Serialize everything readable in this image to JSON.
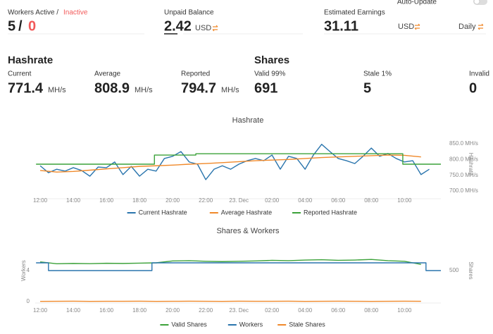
{
  "header": {
    "auto_update": "Auto-Update"
  },
  "workers": {
    "label": "Workers Active /",
    "inactive_label": "Inactive",
    "active": 5,
    "separator": "/",
    "inactive": 0
  },
  "balance": {
    "label": "Unpaid Balance",
    "value": 2.42,
    "currency": "USD"
  },
  "earnings": {
    "label": "Estimated Earnings",
    "value": 31.11,
    "currency": "USD",
    "period": "Daily"
  },
  "hashrate": {
    "title": "Hashrate",
    "current": {
      "label": "Current",
      "value": 771.4,
      "unit": "MH/s"
    },
    "average": {
      "label": "Average",
      "value": 808.9,
      "unit": "MH/s"
    },
    "reported": {
      "label": "Reported",
      "value": 794.7,
      "unit": "MH/s"
    }
  },
  "shares": {
    "title": "Shares",
    "valid": {
      "label": "Valid 99%",
      "value": 691
    },
    "stale": {
      "label": "Stale 1%",
      "value": 5
    },
    "invalid": {
      "label": "Invalid",
      "value": 0
    }
  },
  "chart_data": [
    {
      "type": "line",
      "title": "Hashrate",
      "y2label": "Hashrate",
      "xlim": [
        -0.3,
        24.2
      ],
      "xticks": [
        {
          "value": 0,
          "label": "12:00"
        },
        {
          "value": 2,
          "label": "14:00"
        },
        {
          "value": 4,
          "label": "16:00"
        },
        {
          "value": 6,
          "label": "18:00"
        },
        {
          "value": 8,
          "label": "20:00"
        },
        {
          "value": 10,
          "label": "22:00"
        },
        {
          "value": 12,
          "label": "23. Dec"
        },
        {
          "value": 14,
          "label": "02:00"
        },
        {
          "value": 16,
          "label": "04:00"
        },
        {
          "value": 18,
          "label": "06:00"
        },
        {
          "value": 20,
          "label": "08:00"
        },
        {
          "value": 22,
          "label": "10:00"
        }
      ],
      "y2lim": [
        680,
        890
      ],
      "y2ticks": [
        {
          "value": 850,
          "label": "850.0 MH/s"
        },
        {
          "value": 800,
          "label": "800.0 MH/s"
        },
        {
          "value": 750,
          "label": "750.0 MH/s"
        },
        {
          "value": 700,
          "label": "700.0 MH/s"
        }
      ],
      "grid": false,
      "series": [
        {
          "name": "Current Hashrate",
          "color": "#2a75ad",
          "axis": "y2",
          "x": [
            0,
            0.5,
            1,
            1.5,
            2,
            2.5,
            3,
            3.5,
            4,
            4.5,
            5,
            5.5,
            6,
            6.5,
            7,
            7.5,
            8,
            8.5,
            9,
            9.5,
            10,
            10.5,
            11,
            11.5,
            12,
            12.5,
            13,
            13.5,
            14,
            14.5,
            15,
            15.5,
            16,
            16.5,
            17,
            17.5,
            18,
            18.5,
            19,
            19.5,
            20,
            20.5,
            21,
            21.5,
            22,
            22.5,
            23,
            23.5
          ],
          "values": [
            780,
            758,
            769,
            763,
            774,
            765,
            747,
            776,
            774,
            792,
            752,
            778,
            747,
            769,
            763,
            803,
            810,
            825,
            792,
            785,
            736,
            769,
            780,
            769,
            785,
            796,
            803,
            796,
            814,
            769,
            810,
            803,
            769,
            814,
            848,
            825,
            803,
            796,
            787,
            810,
            836,
            810,
            819,
            803,
            792,
            796,
            752,
            769
          ]
        },
        {
          "name": "Average Hashrate",
          "color": "#f0892a",
          "axis": "y2",
          "x": [
            0,
            1,
            2,
            3,
            4,
            5,
            6,
            7,
            8,
            9,
            10,
            11,
            12,
            13,
            14,
            15,
            16,
            17,
            18,
            19,
            20,
            21,
            22,
            23
          ],
          "values": [
            765,
            760,
            762,
            766,
            770,
            774,
            778,
            780,
            782,
            785,
            787,
            790,
            793,
            796,
            798,
            800,
            803,
            806,
            808,
            810,
            812,
            814,
            813,
            808
          ]
        },
        {
          "name": "Reported Hashrate",
          "color": "#3ca23a",
          "axis": "y2",
          "step": true,
          "x": [
            -0.25,
            6.9,
            9.4,
            21.9,
            24.0
          ],
          "values": [
            785,
            814,
            818,
            785,
            785
          ]
        }
      ]
    },
    {
      "type": "line",
      "title": "Shares & Workers",
      "ylabel": "Workers",
      "y2label": "Shares",
      "xlim": [
        -0.3,
        24.2
      ],
      "xticks": [
        {
          "value": 0,
          "label": "12:00"
        },
        {
          "value": 2,
          "label": "14:00"
        },
        {
          "value": 4,
          "label": "16:00"
        },
        {
          "value": 6,
          "label": "18:00"
        },
        {
          "value": 8,
          "label": "20:00"
        },
        {
          "value": 10,
          "label": "22:00"
        },
        {
          "value": 12,
          "label": "23. Dec"
        },
        {
          "value": 14,
          "label": "02:00"
        },
        {
          "value": 16,
          "label": "04:00"
        },
        {
          "value": 18,
          "label": "06:00"
        },
        {
          "value": 20,
          "label": "08:00"
        },
        {
          "value": 22,
          "label": "10:00"
        }
      ],
      "ylim": [
        0,
        8
      ],
      "yticks": [
        0,
        4
      ],
      "y2lim": [
        0,
        1000
      ],
      "y2ticks": [
        500
      ],
      "grid": false,
      "series": [
        {
          "name": "Valid Shares",
          "color": "#3ca23a",
          "axis": "y2",
          "x": [
            0,
            1,
            2,
            3,
            4,
            5,
            6,
            7,
            8,
            9,
            10,
            11,
            12,
            13,
            14,
            15,
            16,
            17,
            18,
            19,
            20,
            21,
            22,
            23
          ],
          "values": [
            640,
            610,
            615,
            612,
            618,
            615,
            620,
            625,
            655,
            660,
            650,
            645,
            650,
            655,
            665,
            660,
            670,
            675,
            665,
            670,
            680,
            660,
            650,
            600
          ]
        },
        {
          "name": "Workers",
          "color": "#2a75ad",
          "axis": "y",
          "step": true,
          "x": [
            -0.25,
            0.5,
            6.75,
            23.3,
            24.0
          ],
          "values": [
            5,
            4,
            5,
            4,
            4
          ]
        },
        {
          "name": "Stale Shares",
          "color": "#f0892a",
          "axis": "y2",
          "x": [
            0,
            1,
            2,
            3,
            4,
            5,
            6,
            7,
            8,
            9,
            10,
            11,
            12,
            13,
            14,
            15,
            16,
            17,
            18,
            19,
            20,
            21,
            22,
            23
          ],
          "values": [
            4,
            5,
            6,
            4,
            5,
            5,
            6,
            4,
            5,
            6,
            5,
            4,
            6,
            5,
            5,
            6,
            4,
            5,
            6,
            5,
            4,
            5,
            6,
            5
          ]
        }
      ]
    }
  ]
}
